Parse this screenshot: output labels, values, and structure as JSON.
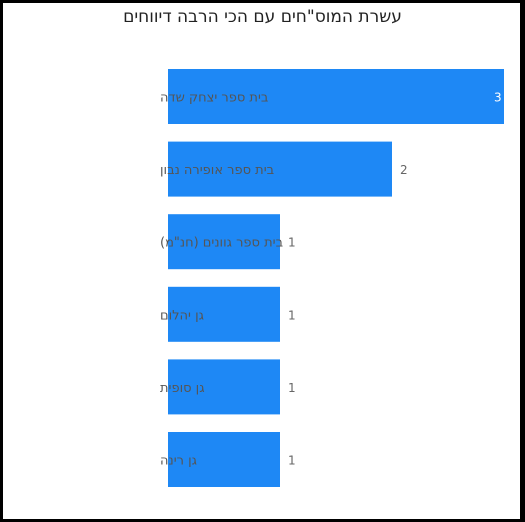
{
  "chart_data": {
    "type": "bar",
    "orientation": "horizontal",
    "title": "עשרת המוס\"חים עם הכי הרבה דיווחים",
    "xlabel": "",
    "ylabel": "",
    "categories": [
      "בית ספר יצחק שדה",
      "בית ספר אופירה נבון",
      "בית ספר גוונים (חנ\"מ)",
      "גן יהלום",
      "גן סופית",
      "גן רינה"
    ],
    "values": [
      3,
      2,
      1,
      1,
      1,
      1
    ],
    "xlim": [
      0,
      3
    ],
    "grid": false,
    "bar_color": "#1e88f5"
  }
}
